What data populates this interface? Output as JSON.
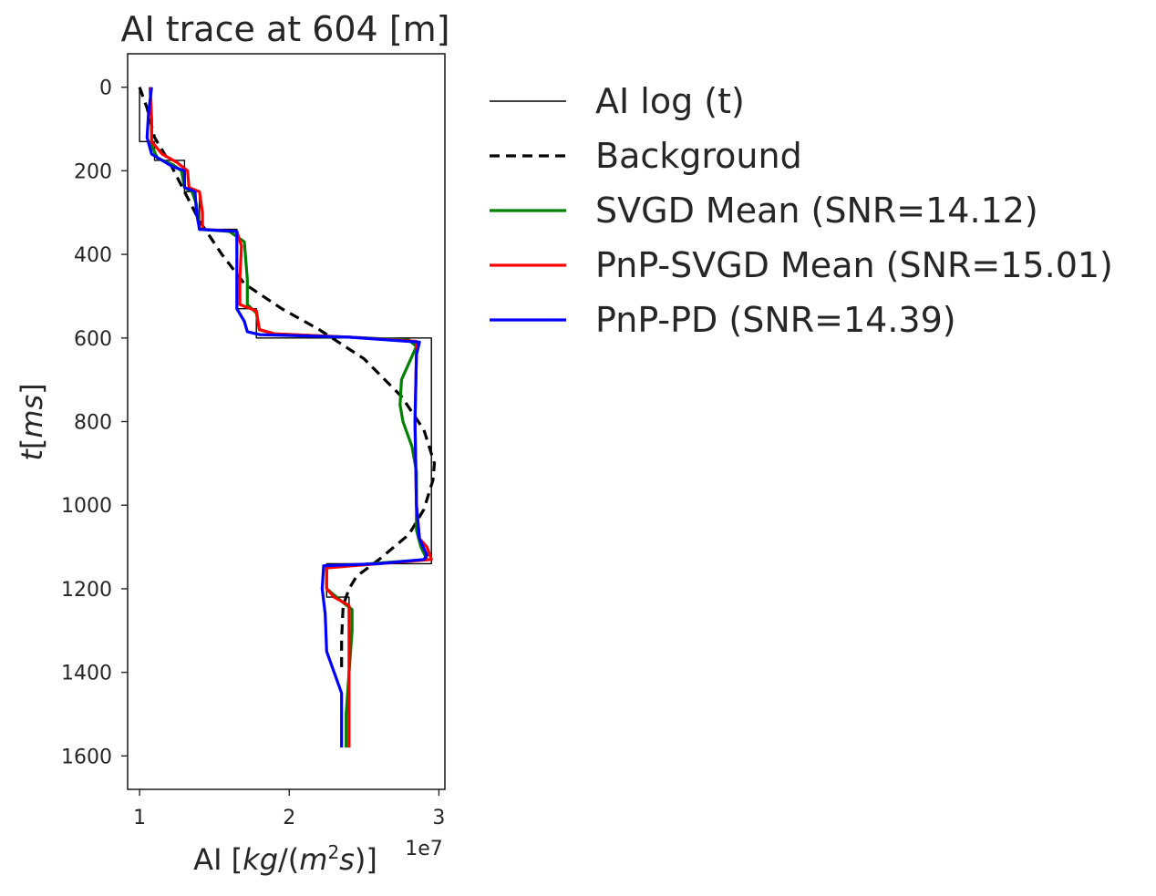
{
  "chart_data": {
    "type": "line",
    "title": "AI trace at 604 [m]",
    "xlabel": "AI [kg/(m²s)]",
    "xlabel_parts": {
      "pre": "AI [",
      "italic1": "kg",
      "mid": "/(",
      "italic2": "m",
      "sup": "2",
      "italic3": "s",
      "post": ")]"
    },
    "x_offset_label": "1e7",
    "ylabel": "t[ms]",
    "ylabel_parts": {
      "italic": "t",
      "rest": "[",
      "unit": "ms",
      "close": "]"
    },
    "xlim": [
      0.92,
      3.04
    ],
    "ylim": [
      1680,
      -80
    ],
    "x_ticks": [
      1,
      2,
      3
    ],
    "x_tick_labels": [
      "1",
      "2",
      "3"
    ],
    "y_ticks": [
      0,
      200,
      400,
      600,
      800,
      1000,
      1200,
      1400,
      1600
    ],
    "y_tick_labels": [
      "0",
      "200",
      "400",
      "600",
      "800",
      "1000",
      "1200",
      "1400",
      "1600"
    ],
    "grid": false,
    "legend_position": "outside-right",
    "series": [
      {
        "name": "AI log (t)",
        "color": "#000000",
        "style": "solid-thin",
        "points": [
          [
            1.0,
            0
          ],
          [
            1.0,
            130
          ],
          [
            1.1,
            130
          ],
          [
            1.1,
            175
          ],
          [
            1.3,
            175
          ],
          [
            1.3,
            250
          ],
          [
            1.4,
            250
          ],
          [
            1.4,
            340
          ],
          [
            1.65,
            340
          ],
          [
            1.65,
            530
          ],
          [
            1.78,
            530
          ],
          [
            1.78,
            600
          ],
          [
            2.95,
            600
          ],
          [
            2.95,
            1140
          ],
          [
            2.25,
            1140
          ],
          [
            2.25,
            1220
          ],
          [
            2.4,
            1220
          ],
          [
            2.4,
            1580
          ]
        ]
      },
      {
        "name": "Background",
        "color": "#000000",
        "style": "dashed",
        "points": [
          [
            1.0,
            0
          ],
          [
            1.05,
            50
          ],
          [
            1.1,
            120
          ],
          [
            1.2,
            180
          ],
          [
            1.3,
            250
          ],
          [
            1.4,
            320
          ],
          [
            1.55,
            400
          ],
          [
            1.7,
            470
          ],
          [
            1.95,
            530
          ],
          [
            2.2,
            580
          ],
          [
            2.5,
            650
          ],
          [
            2.75,
            740
          ],
          [
            2.9,
            820
          ],
          [
            2.97,
            900
          ],
          [
            2.96,
            940
          ],
          [
            2.9,
            1010
          ],
          [
            2.8,
            1070
          ],
          [
            2.6,
            1130
          ],
          [
            2.45,
            1170
          ],
          [
            2.4,
            1200
          ],
          [
            2.36,
            1240
          ],
          [
            2.35,
            1320
          ],
          [
            2.35,
            1400
          ]
        ]
      },
      {
        "name": "SVGD Mean (SNR=14.12)",
        "color": "#008000",
        "style": "solid",
        "points": [
          [
            1.07,
            0
          ],
          [
            1.08,
            80
          ],
          [
            1.08,
            140
          ],
          [
            1.12,
            170
          ],
          [
            1.22,
            185
          ],
          [
            1.28,
            200
          ],
          [
            1.3,
            240
          ],
          [
            1.35,
            250
          ],
          [
            1.38,
            280
          ],
          [
            1.4,
            340
          ],
          [
            1.6,
            345
          ],
          [
            1.7,
            370
          ],
          [
            1.72,
            460
          ],
          [
            1.72,
            520
          ],
          [
            1.78,
            540
          ],
          [
            1.8,
            580
          ],
          [
            1.9,
            590
          ],
          [
            2.4,
            598
          ],
          [
            2.8,
            605
          ],
          [
            2.85,
            620
          ],
          [
            2.8,
            660
          ],
          [
            2.75,
            700
          ],
          [
            2.74,
            760
          ],
          [
            2.76,
            800
          ],
          [
            2.82,
            860
          ],
          [
            2.85,
            920
          ],
          [
            2.85,
            980
          ],
          [
            2.85,
            1060
          ],
          [
            2.88,
            1100
          ],
          [
            2.92,
            1130
          ],
          [
            2.55,
            1140
          ],
          [
            2.25,
            1150
          ],
          [
            2.25,
            1200
          ],
          [
            2.35,
            1230
          ],
          [
            2.42,
            1250
          ],
          [
            2.42,
            1300
          ],
          [
            2.4,
            1400
          ],
          [
            2.38,
            1500
          ],
          [
            2.38,
            1580
          ]
        ]
      },
      {
        "name": "PnP-SVGD Mean (SNR=15.01)",
        "color": "#ff0000",
        "style": "solid",
        "points": [
          [
            1.07,
            0
          ],
          [
            1.08,
            80
          ],
          [
            1.08,
            130
          ],
          [
            1.15,
            160
          ],
          [
            1.25,
            180
          ],
          [
            1.32,
            200
          ],
          [
            1.33,
            240
          ],
          [
            1.4,
            250
          ],
          [
            1.42,
            300
          ],
          [
            1.42,
            340
          ],
          [
            1.65,
            345
          ],
          [
            1.68,
            380
          ],
          [
            1.67,
            460
          ],
          [
            1.67,
            520
          ],
          [
            1.78,
            535
          ],
          [
            1.8,
            580
          ],
          [
            1.9,
            590
          ],
          [
            2.4,
            598
          ],
          [
            2.85,
            608
          ],
          [
            2.85,
            640
          ],
          [
            2.84,
            800
          ],
          [
            2.85,
            1000
          ],
          [
            2.87,
            1080
          ],
          [
            2.92,
            1100
          ],
          [
            2.95,
            1130
          ],
          [
            2.6,
            1140
          ],
          [
            2.25,
            1150
          ],
          [
            2.25,
            1200
          ],
          [
            2.3,
            1220
          ],
          [
            2.4,
            1240
          ],
          [
            2.4,
            1580
          ]
        ]
      },
      {
        "name": "PnP-PD (SNR=14.39)",
        "color": "#0000ff",
        "style": "solid",
        "points": [
          [
            1.08,
            0
          ],
          [
            1.06,
            60
          ],
          [
            1.05,
            120
          ],
          [
            1.08,
            160
          ],
          [
            1.15,
            175
          ],
          [
            1.22,
            190
          ],
          [
            1.3,
            200
          ],
          [
            1.3,
            240
          ],
          [
            1.37,
            250
          ],
          [
            1.38,
            300
          ],
          [
            1.4,
            340
          ],
          [
            1.65,
            345
          ],
          [
            1.65,
            400
          ],
          [
            1.65,
            530
          ],
          [
            1.7,
            560
          ],
          [
            1.72,
            585
          ],
          [
            1.8,
            592
          ],
          [
            2.4,
            598
          ],
          [
            2.87,
            610
          ],
          [
            2.85,
            640
          ],
          [
            2.84,
            800
          ],
          [
            2.85,
            1000
          ],
          [
            2.87,
            1080
          ],
          [
            2.92,
            1120
          ],
          [
            2.9,
            1130
          ],
          [
            2.6,
            1140
          ],
          [
            2.23,
            1145
          ],
          [
            2.22,
            1200
          ],
          [
            2.24,
            1260
          ],
          [
            2.25,
            1350
          ],
          [
            2.3,
            1400
          ],
          [
            2.35,
            1450
          ],
          [
            2.35,
            1580
          ]
        ]
      }
    ]
  }
}
